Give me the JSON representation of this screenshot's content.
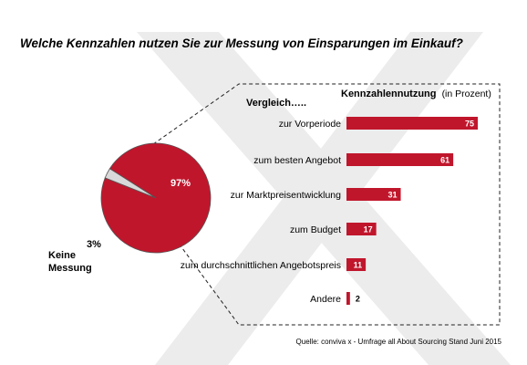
{
  "title": "Welche Kennzahlen nutzen Sie zur Messung von Einsparungen im Einkauf?",
  "source": "Quelle: conviva x - Umfrage all About Sourcing Stand Juni 2015",
  "colors": {
    "accent": "#c0162c",
    "pie_small": "#d9d9d9",
    "watermark": "#ececec",
    "text": "#000000"
  },
  "chart_data": [
    {
      "type": "pie",
      "slices": [
        {
          "label": "",
          "value": 97,
          "value_label": "97%"
        },
        {
          "label": "Keine Messung",
          "label_lines": [
            "Keine",
            "Messung"
          ],
          "value": 3,
          "value_label": "3%"
        }
      ]
    },
    {
      "type": "bar",
      "orientation": "horizontal",
      "title": "Kennzahlennutzung",
      "title_unit": "(in Prozent)",
      "category_header": "Vergleich…..",
      "categories": [
        "zur Vorperiode",
        "zum besten Angebot",
        "zur Marktpreisentwicklung",
        "zum Budget",
        "zum durchschnittlichen Angebotspreis",
        "Andere"
      ],
      "values": [
        75,
        61,
        31,
        17,
        11,
        2
      ]
    }
  ]
}
